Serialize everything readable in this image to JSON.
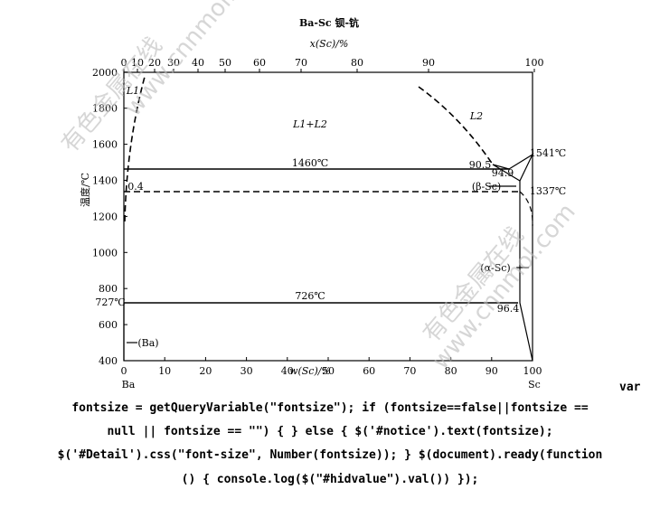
{
  "figure": {
    "title": "Ba-Sc 钡-钪",
    "top_axis": {
      "label": "x(Sc)/%",
      "ticks": [
        "0",
        "10",
        "20",
        "30",
        "40",
        "50",
        "60",
        "70",
        "80",
        "90",
        "100"
      ]
    },
    "left_axis": {
      "label": "温度/℃",
      "ticks": [
        "400",
        "600",
        "800",
        "1000",
        "1200",
        "1400",
        "1600",
        "1800",
        "2000"
      ]
    },
    "bottom_axis": {
      "label": "w(Sc)/%",
      "ticks": [
        "0",
        "10",
        "20",
        "30",
        "40",
        "50",
        "60",
        "70",
        "80",
        "90",
        "100"
      ]
    },
    "annotations": [
      "L1",
      "L1+L2",
      "L2",
      "1460℃",
      "90.5",
      "94.9",
      "1541℃",
      "0.4",
      "(β-Sc)",
      "1337℃",
      "(α-Sc)",
      "726℃",
      "727℃",
      "96.4",
      "(Ba)",
      "Ba",
      "Sc"
    ],
    "watermarks": [
      "有色金属在线",
      "www.cnnmol.com"
    ]
  },
  "code_lines": [
    "var",
    "fontsize = getQueryVariable(\"fontsize\"); if (fontsize==false||fontsize ==",
    "null || fontsize == \"\") { } else { $('#notice').text(fontsize);",
    "$('#Detail').css(\"font-size\", Number(fontsize)); } $(document).ready(function",
    "() { console.log($(\"#hidvalue\").val()) });"
  ]
}
